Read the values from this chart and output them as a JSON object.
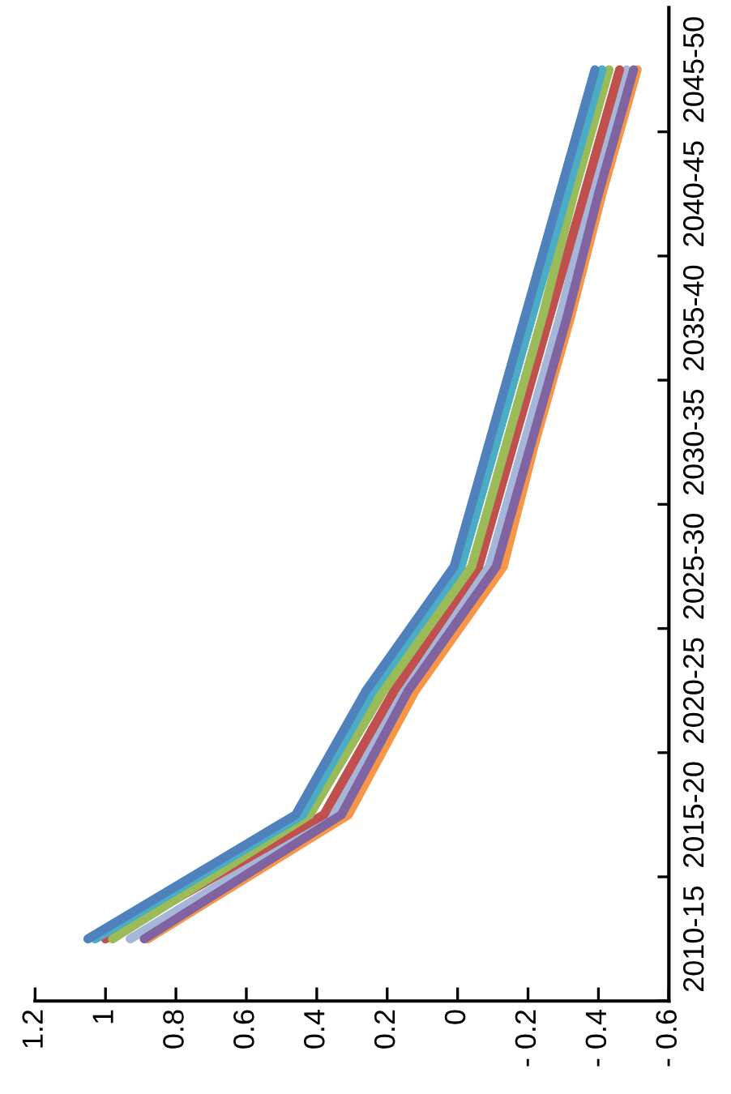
{
  "chart_data": {
    "type": "line",
    "orientation": "horizontal",
    "categories": [
      "2045-50",
      "2040-45",
      "2035-40",
      "2030-35",
      "2025-30",
      "2020-25",
      "2015-20",
      "2010-15"
    ],
    "series": [
      {
        "color": "#f79646",
        "values": [
          -0.51,
          -0.41,
          -0.32,
          -0.22,
          -0.13,
          0.12,
          0.31,
          0.88
        ]
      },
      {
        "color": "#a5b6d9",
        "values": [
          -0.48,
          -0.38,
          -0.29,
          -0.19,
          -0.09,
          0.16,
          0.35,
          0.93
        ]
      },
      {
        "color": "#8064a2",
        "values": [
          -0.5,
          -0.4,
          -0.31,
          -0.21,
          -0.11,
          0.14,
          0.33,
          0.89
        ]
      },
      {
        "color": "#c0504d",
        "values": [
          -0.46,
          -0.36,
          -0.26,
          -0.16,
          -0.06,
          0.18,
          0.38,
          1.0
        ]
      },
      {
        "color": "#9bbb59",
        "values": [
          -0.43,
          -0.33,
          -0.24,
          -0.14,
          -0.04,
          0.21,
          0.42,
          0.98
        ]
      },
      {
        "color": "#4bacc6",
        "values": [
          -0.41,
          -0.31,
          -0.21,
          -0.11,
          -0.01,
          0.24,
          0.44,
          1.03
        ]
      },
      {
        "color": "#4f81bd",
        "values": [
          -0.39,
          -0.29,
          -0.19,
          -0.09,
          0.01,
          0.26,
          0.46,
          1.05
        ]
      }
    ],
    "xlim": [
      1.2,
      -0.6
    ],
    "xticks": [
      1.2,
      1,
      0.8,
      0.6,
      0.4,
      0.2,
      0,
      {
        "value": -0.2,
        "label": "- 0.2"
      },
      {
        "value": -0.4,
        "label": "- 0.4"
      },
      {
        "value": -0.6,
        "label": "- 0.6"
      }
    ],
    "grid": false,
    "legend": false,
    "marker": "none",
    "line_style": "solid"
  }
}
